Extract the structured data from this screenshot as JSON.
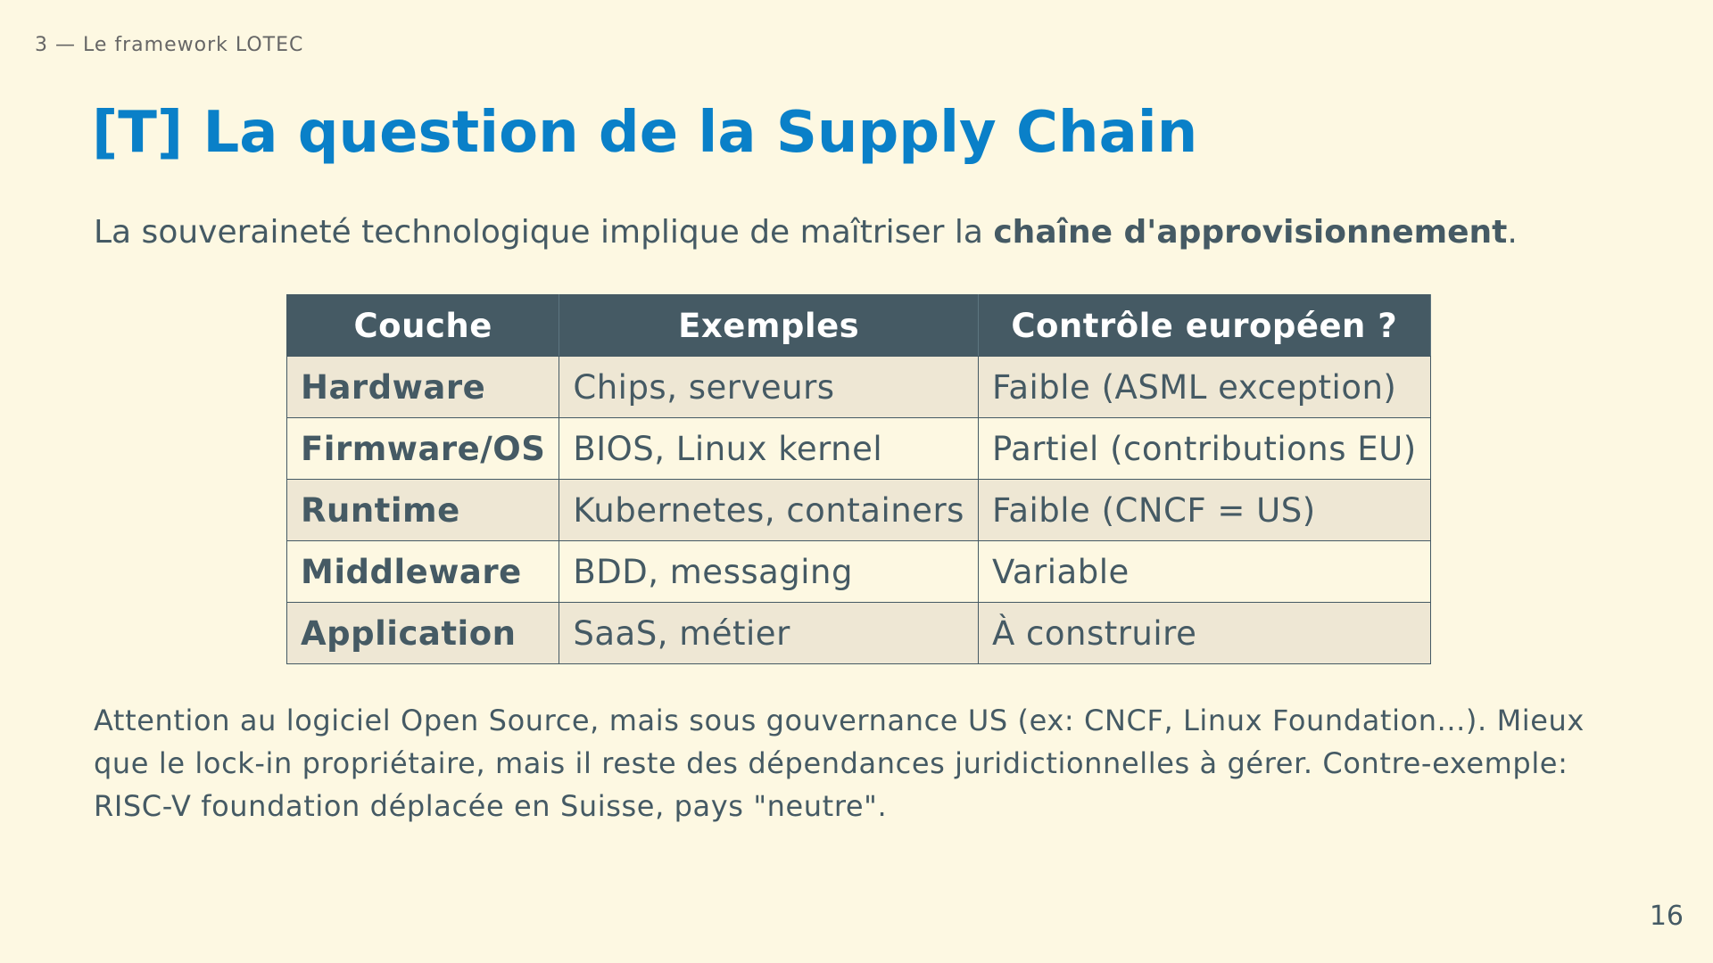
{
  "header": {
    "section": "3 — Le framework LOTEC"
  },
  "title": "[T] La question de la Supply Chain",
  "lead": {
    "text": "La souveraineté technologique implique de maîtriser la ",
    "emphasis": "chaîne d'approvisionnement",
    "end": "."
  },
  "table": {
    "headers": [
      "Couche",
      "Exemples",
      "Contrôle européen ?"
    ],
    "rows": [
      [
        "Hardware",
        "Chips, serveurs",
        "Faible (ASML exception)"
      ],
      [
        "Firmware/OS",
        "BIOS, Linux kernel",
        "Partiel (contributions EU)"
      ],
      [
        "Runtime",
        "Kubernetes, containers",
        "Faible (CNCF = US)"
      ],
      [
        "Middleware",
        "BDD, messaging",
        "Variable"
      ],
      [
        "Application",
        "SaaS, métier",
        "À construire"
      ]
    ]
  },
  "note": "Attention au logiciel Open Source, mais sous gouvernance US (ex: CNCF, Linux Foundation...). Mieux que le lock-in propriétaire, mais il reste des dépendances juridictionnelles à gérer. Contre-exemple: RISC-V foundation déplacée en Suisse, pays \"neutre\".",
  "page_number": "16",
  "colors": {
    "background": "#fdf8e2",
    "title": "#0a80c8",
    "text": "#455a64",
    "table_header": "#455a64",
    "table_row_alt": "#eee7d4"
  }
}
